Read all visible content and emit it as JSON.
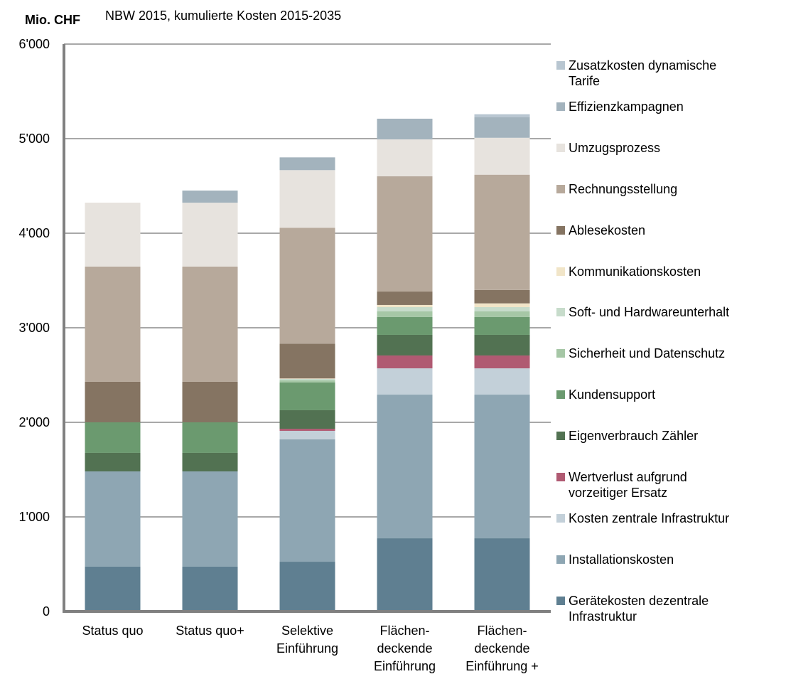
{
  "chart_data": {
    "type": "stacked_bar",
    "y_axis_label": "Mio. CHF",
    "title": "NBW 2015, kumulierte Kosten 2015-2035",
    "categories": [
      "Status quo",
      "Status quo+",
      "Selektive\nEinführung",
      "Flächen-\ndeckende\nEinführung",
      "Flächen-\ndeckende\nEinführung +"
    ],
    "ylim": [
      0,
      6000
    ],
    "yticks": [
      0,
      {
        "value": 1000,
        "label": "1'000"
      },
      {
        "value": 2000,
        "label": "2'000"
      },
      {
        "value": 3000,
        "label": "3'000"
      },
      {
        "value": 4000,
        "label": "4'000"
      },
      {
        "value": 5000,
        "label": "5'000"
      },
      {
        "value": 6000,
        "label": "6'000"
      }
    ],
    "grid": true,
    "legend": "right",
    "series": [
      {
        "name": "Gerätekosten dezentrale\nInfrastruktur",
        "color": "#5f7f91",
        "values": [
          474,
          474,
          526,
          774,
          774
        ]
      },
      {
        "name": "Installationskosten",
        "color": "#8ea6b3",
        "values": [
          1007,
          1007,
          1294,
          1519,
          1519
        ]
      },
      {
        "name": "Kosten zentrale Infrastruktur",
        "color": "#c3d0d9",
        "values": [
          0,
          0,
          90,
          278,
          278
        ]
      },
      {
        "name": "Wertverlust aufgrund\nvorzeitiger Ersatz",
        "color": "#b05a72",
        "values": [
          0,
          0,
          22,
          136,
          136
        ]
      },
      {
        "name": "Eigenverbrauch Zähler",
        "color": "#527252",
        "values": [
          196,
          196,
          196,
          218,
          218
        ]
      },
      {
        "name": "Kundensupport",
        "color": "#6b9a6f",
        "values": [
          323,
          323,
          293,
          188,
          188
        ]
      },
      {
        "name": "Sicherheit und Datenschutz",
        "color": "#a6c7a6",
        "values": [
          0,
          0,
          23,
          60,
          60
        ]
      },
      {
        "name": "Soft- und Hardwareunterhalt",
        "color": "#c7dccb",
        "values": [
          0,
          0,
          15,
          45,
          45
        ]
      },
      {
        "name": "Kommunikationskosten",
        "color": "#f1e5c8",
        "values": [
          0,
          0,
          5,
          23,
          40
        ]
      },
      {
        "name": "Ablesekosten",
        "color": "#857462",
        "values": [
          429,
          429,
          368,
          142,
          142
        ]
      },
      {
        "name": "Rechnungsstellung",
        "color": "#b7a99b",
        "values": [
          1218,
          1218,
          1226,
          1219,
          1219
        ]
      },
      {
        "name": "Umzugsprozess",
        "color": "#e7e3de",
        "values": [
          676,
          676,
          609,
          390,
          390
        ]
      },
      {
        "name": "Effizienzkampagnen",
        "color": "#a3b3bd",
        "values": [
          0,
          128,
          135,
          219,
          219
        ]
      },
      {
        "name": "Zusatzkosten dynamische\nTarife",
        "color": "#b8c6d1",
        "values": [
          0,
          0,
          0,
          0,
          30
        ]
      }
    ]
  }
}
